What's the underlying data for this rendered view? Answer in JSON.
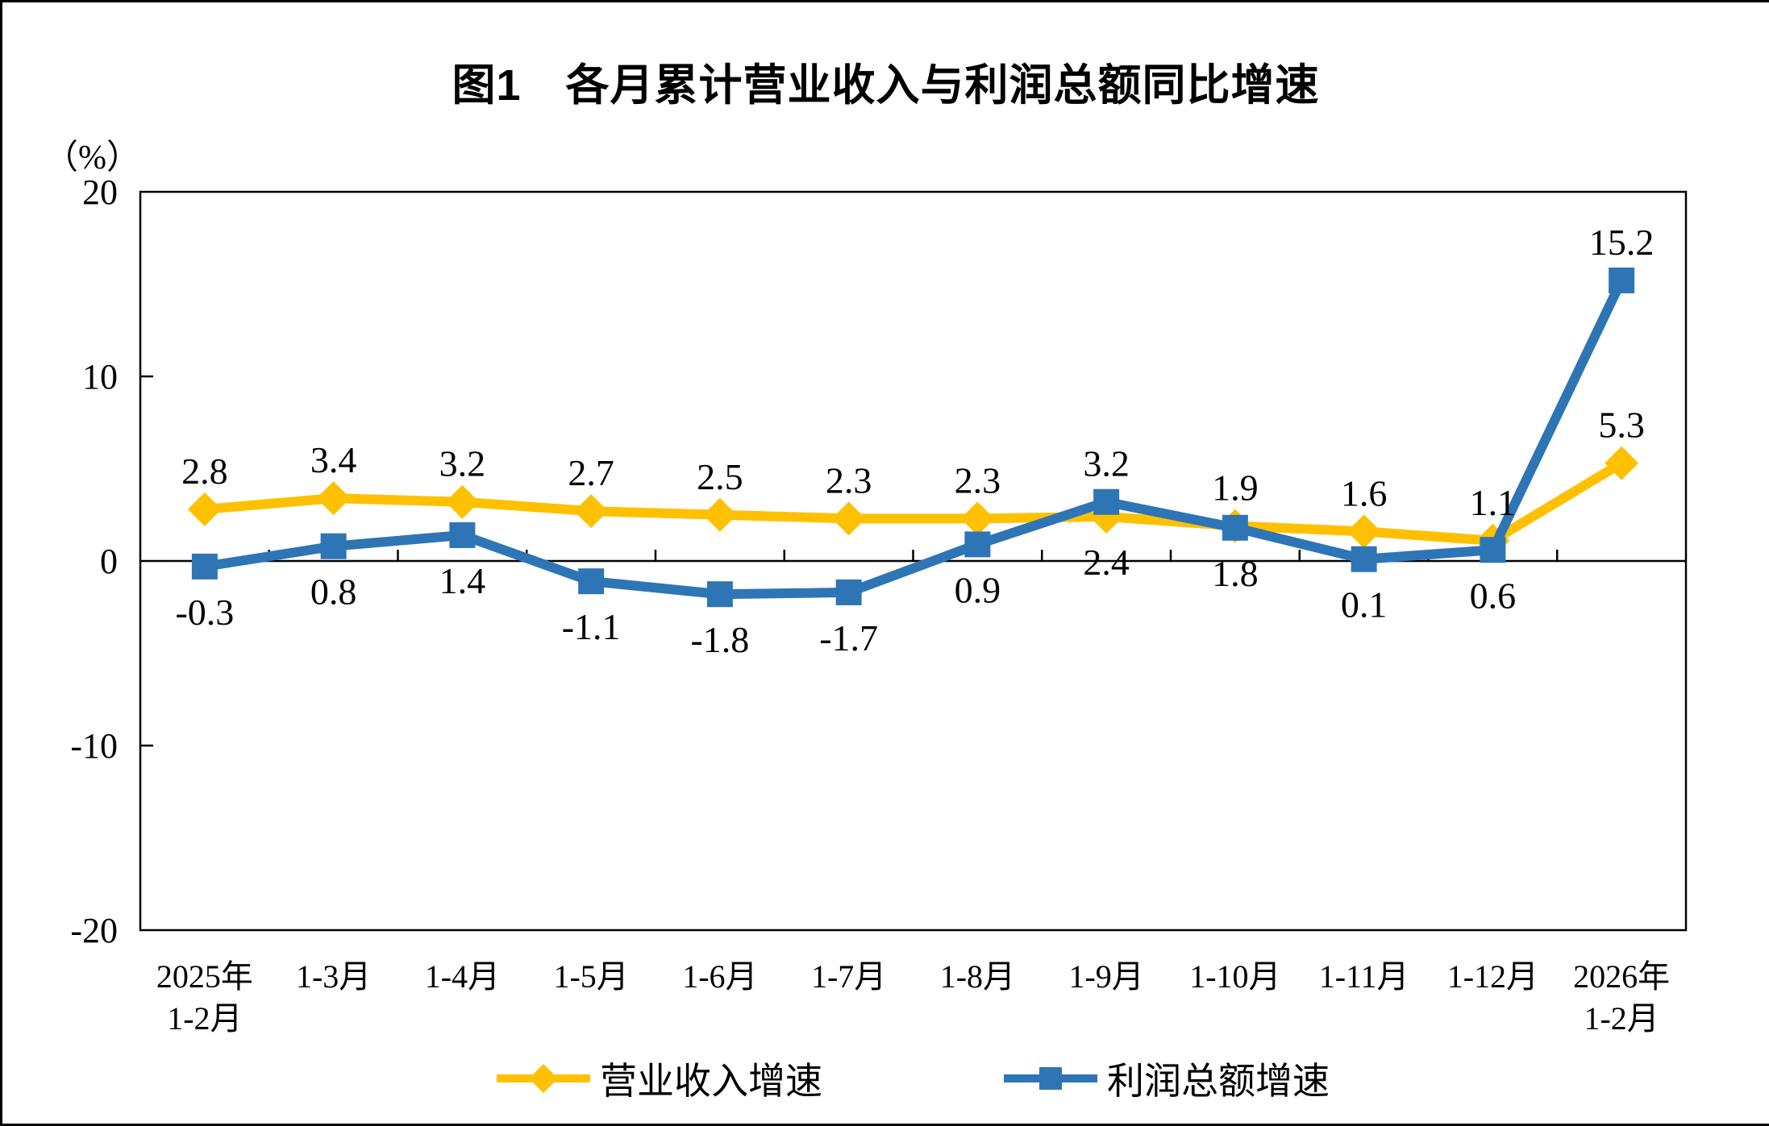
{
  "chart_data": {
    "type": "line",
    "title": "图1　各月累计营业收入与利润总额同比增速",
    "ylabel": "（%）",
    "ylim": [
      -20,
      20
    ],
    "y_ticks": [
      20,
      10,
      0,
      -10,
      -20
    ],
    "grid": false,
    "legend_position": "bottom",
    "categories": [
      "2025年\n1-2月",
      "1-3月",
      "1-4月",
      "1-5月",
      "1-6月",
      "1-7月",
      "1-8月",
      "1-9月",
      "1-10月",
      "1-11月",
      "1-12月",
      "2026年\n1-2月"
    ],
    "series": [
      {
        "name": "营业收入增速",
        "color": "#FFC000",
        "marker": "diamond",
        "values": [
          2.8,
          3.4,
          3.2,
          2.7,
          2.5,
          2.3,
          2.3,
          2.4,
          1.9,
          1.6,
          1.1,
          5.3
        ],
        "label_positions": [
          "above",
          "above",
          "above",
          "above",
          "above",
          "above",
          "above",
          "below",
          "above",
          "above",
          "above",
          "above"
        ]
      },
      {
        "name": "利润总额增速",
        "color": "#2E75B6",
        "marker": "square",
        "values": [
          -0.3,
          0.8,
          1.4,
          -1.1,
          -1.8,
          -1.7,
          0.9,
          3.2,
          1.8,
          0.1,
          0.6,
          15.2
        ],
        "label_positions": [
          "below",
          "below",
          "below",
          "below",
          "below",
          "below",
          "below",
          "above",
          "below",
          "below",
          "below",
          "above"
        ]
      }
    ]
  }
}
